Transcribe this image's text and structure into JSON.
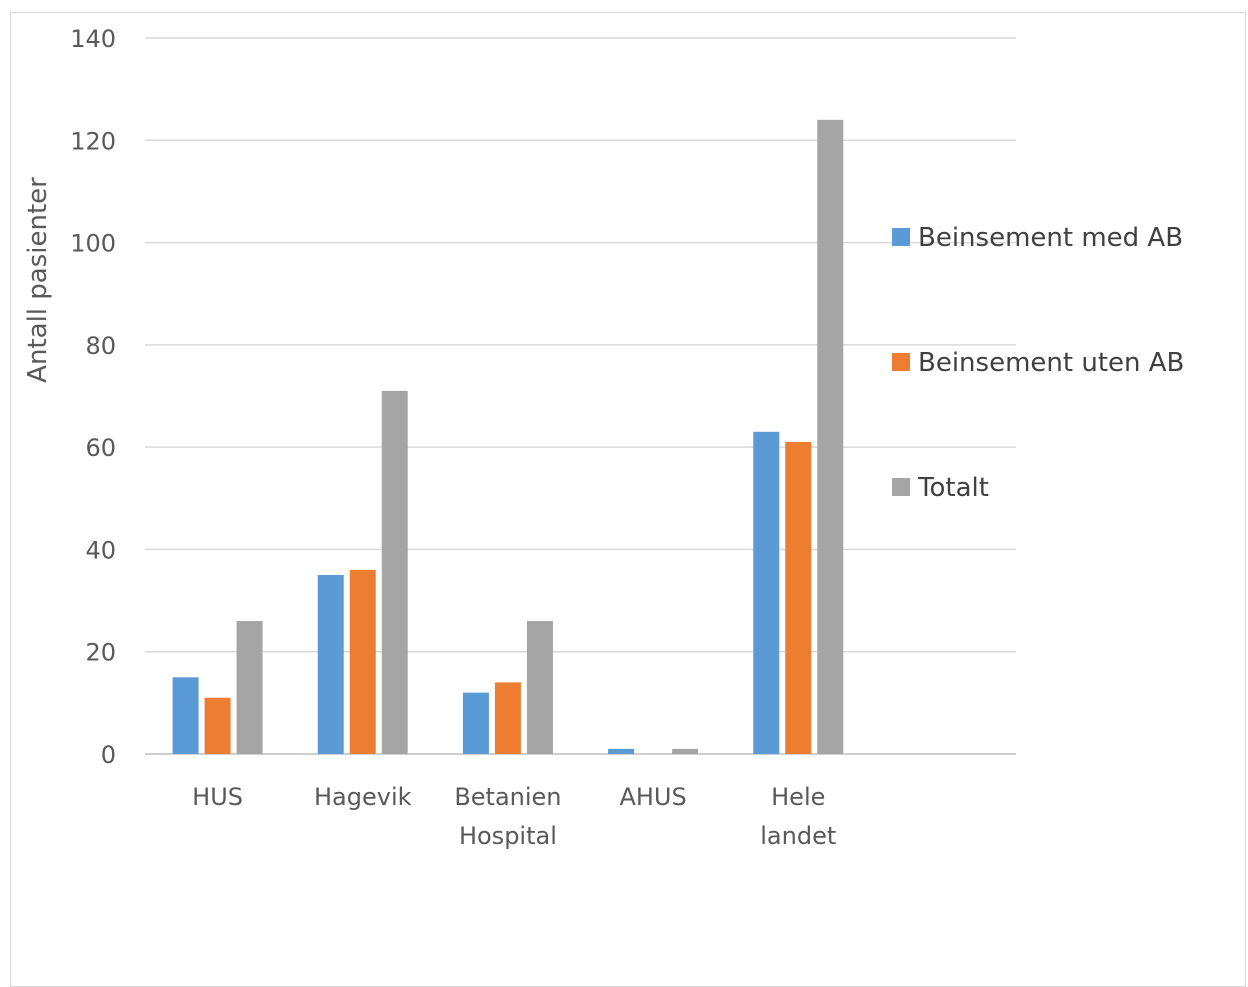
{
  "chart_data": {
    "type": "bar",
    "title": "",
    "xlabel": "",
    "ylabel": "Antall pasienter",
    "ylim": [
      0,
      140
    ],
    "yticks": [
      0,
      20,
      40,
      60,
      80,
      100,
      120,
      140
    ],
    "grid": true,
    "legend_position": "right",
    "categories": [
      [
        "HUS"
      ],
      [
        "Hagevik"
      ],
      [
        "Betanien",
        "Hospital"
      ],
      [
        "AHUS"
      ],
      [
        "Hele",
        "landet"
      ]
    ],
    "series": [
      {
        "name": "Beinsement med AB",
        "color": "#5b9bd5",
        "values": [
          15,
          35,
          12,
          1,
          63
        ]
      },
      {
        "name": "Beinsement uten AB",
        "color": "#ed7d31",
        "values": [
          11,
          36,
          14,
          0,
          61
        ]
      },
      {
        "name": "Totalt",
        "color": "#a5a5a5",
        "values": [
          26,
          71,
          26,
          1,
          124
        ]
      }
    ]
  }
}
